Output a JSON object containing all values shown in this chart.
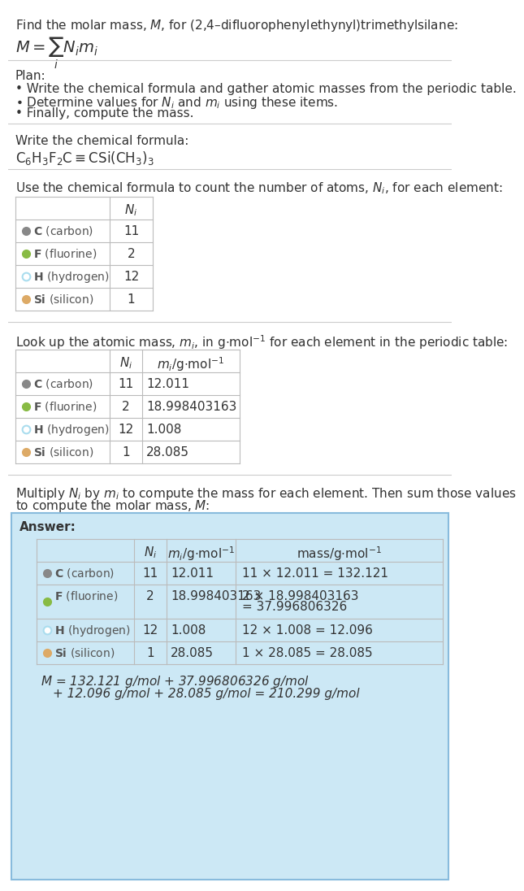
{
  "bg_color": "#ffffff",
  "answer_bg": "#cce8f5",
  "answer_border": "#88bbdd",
  "text_color": "#333333",
  "muted_color": "#555555",
  "table_line_color": "#bbbbbb",
  "sep_line_color": "#cccccc",
  "elements": [
    "C (carbon)",
    "F (fluorine)",
    "H (hydrogen)",
    "Si (silicon)"
  ],
  "element_symbols": [
    "C",
    "F",
    "H",
    "Si"
  ],
  "element_colors": [
    "#888888",
    "#88bb44",
    "#aaddee",
    "#ddaa66"
  ],
  "element_filled": [
    true,
    true,
    false,
    true
  ],
  "Ni": [
    11,
    2,
    12,
    1
  ],
  "mi": [
    "12.011",
    "18.998403163",
    "1.008",
    "28.085"
  ],
  "mass_col_line1": [
    "11 × 12.011 = 132.121",
    "2 × 18.998403163",
    "12 × 1.008 = 12.096",
    "1 × 28.085 = 28.085"
  ],
  "mass_col_line2": [
    "",
    "= 37.996806326",
    "",
    ""
  ],
  "title_text": "Find the molar mass, $M$, for (2,4–difluorophenylethynyl)trimethylsilane:",
  "formula_text": "$M = \\sum_i N_i m_i$",
  "plan_header": "Plan:",
  "plan_bullets": [
    "• Write the chemical formula and gather atomic masses from the periodic table.",
    "• Determine values for $N_i$ and $m_i$ using these items.",
    "• Finally, compute the mass."
  ],
  "chem_formula_label": "Write the chemical formula:",
  "count_label": "Use the chemical formula to count the number of atoms, $N_i$, for each element:",
  "lookup_label": "Look up the atomic mass, $m_i$, in g$\\cdot$mol$^{-1}$ for each element in the periodic table:",
  "multiply_label1": "Multiply $N_i$ by $m_i$ to compute the mass for each element. Then sum those values",
  "multiply_label2": "to compute the molar mass, $M$:",
  "answer_label": "Answer:",
  "final_line1": "$M$ = 132.121 g/mol + 37.996806326 g/mol",
  "final_line2": "+ 12.096 g/mol + 28.085 g/mol = 210.299 g/mol"
}
